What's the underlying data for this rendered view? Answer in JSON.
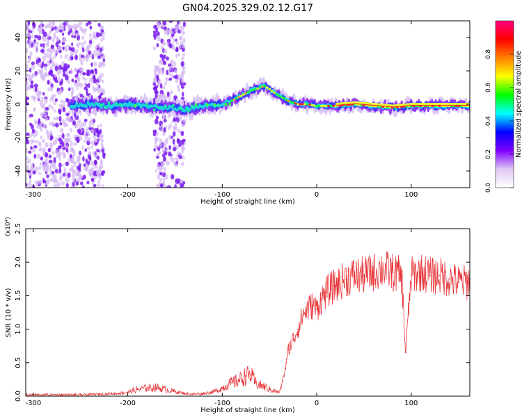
{
  "figure": {
    "title": "GN04.2025.329.02.12.G17"
  },
  "chart_data": [
    {
      "type": "heatmap",
      "title": "GN04.2025.329.02.12.G17",
      "xlabel": "Height of straight line (km)",
      "ylabel": "Frequency (Hz)",
      "xlim": [
        -308,
        162
      ],
      "ylim": [
        -50,
        50
      ],
      "xticks": [
        -300,
        -200,
        -100,
        0,
        100
      ],
      "yticks": [
        -40,
        -20,
        0,
        20,
        40
      ],
      "grid": false,
      "colorbar": {
        "label": "Normalized spectral amplitude",
        "ticks": [
          0.0,
          0.2,
          0.4,
          0.6,
          0.8
        ],
        "range": [
          0,
          1
        ],
        "colormap": [
          "#ffffff",
          "#e0c8f5",
          "#8000ff",
          "#0000ff",
          "#00ffff",
          "#00ff00",
          "#ffff00",
          "#ff8000",
          "#ff0000",
          "#ff0080"
        ]
      },
      "ridge": {
        "x": [
          -260,
          -240,
          -220,
          -200,
          -180,
          -160,
          -140,
          -120,
          -100,
          -90,
          -80,
          -70,
          -60,
          -55,
          -50,
          -40,
          -30,
          -20,
          -10,
          0,
          20,
          40,
          60,
          80,
          100,
          120,
          140,
          162
        ],
        "frequency": [
          -1,
          0,
          -1,
          0,
          -1,
          -2,
          -3,
          -1,
          0,
          2,
          5,
          8,
          10,
          11,
          9,
          5,
          2,
          0,
          0,
          -1,
          -1,
          0,
          -1,
          -2,
          -1,
          -1,
          -1,
          -1
        ]
      },
      "noise_regions_x": [
        [
          -308,
          -225
        ],
        [
          -172,
          -140
        ]
      ]
    },
    {
      "type": "line",
      "xlabel": "Height of straight line (km)",
      "ylabel": "SNR (10 * v/v)",
      "y_multiplier": "(x10⁴)",
      "xlim": [
        -308,
        162
      ],
      "ylim": [
        0,
        2.5
      ],
      "xticks": [
        -300,
        -200,
        -100,
        0,
        100
      ],
      "yticks": [
        0.0,
        0.5,
        1.0,
        1.5,
        2.0,
        2.5
      ],
      "grid": false,
      "color": "#e8363a",
      "series": [
        {
          "x": [
            -308,
            -290,
            -270,
            -250,
            -230,
            -210,
            -200,
            -190,
            -180,
            -170,
            -160,
            -150,
            -140,
            -130,
            -120,
            -110,
            -100,
            -95,
            -90,
            -85,
            -80,
            -75,
            -70,
            -65,
            -60,
            -55,
            -50,
            -45,
            -40,
            -38,
            -35,
            -32,
            -30,
            -25,
            -20,
            -15,
            -10,
            -5,
            0,
            5,
            10,
            20,
            30,
            40,
            50,
            60,
            70,
            80,
            90,
            94,
            100,
            110,
            120,
            130,
            140,
            150,
            160,
            162
          ],
          "values": [
            0.02,
            0.02,
            0.02,
            0.02,
            0.03,
            0.04,
            0.06,
            0.1,
            0.12,
            0.13,
            0.1,
            0.07,
            0.04,
            0.03,
            0.04,
            0.06,
            0.12,
            0.16,
            0.2,
            0.22,
            0.26,
            0.3,
            0.32,
            0.2,
            0.16,
            0.14,
            0.1,
            0.08,
            0.06,
            0.12,
            0.3,
            0.5,
            0.7,
            0.85,
            1.0,
            1.2,
            1.3,
            1.35,
            1.3,
            1.45,
            1.55,
            1.65,
            1.75,
            1.8,
            1.8,
            1.85,
            1.9,
            1.85,
            1.8,
            0.65,
            1.8,
            1.85,
            1.8,
            1.8,
            1.75,
            1.7,
            1.7,
            1.72
          ]
        }
      ]
    }
  ]
}
